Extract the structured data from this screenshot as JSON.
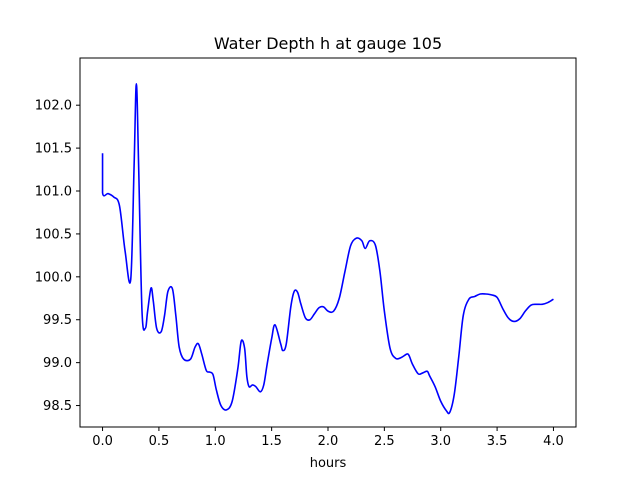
{
  "chart_data": {
    "type": "line",
    "title": "Water Depth h at gauge 105",
    "xlabel": "hours",
    "ylabel": "",
    "xlim": [
      -0.2,
      4.2
    ],
    "ylim": [
      98.25,
      102.55
    ],
    "xticks": [
      0.0,
      0.5,
      1.0,
      1.5,
      2.0,
      2.5,
      3.0,
      3.5,
      4.0
    ],
    "xtick_labels": [
      "0.0",
      "0.5",
      "1.0",
      "1.5",
      "2.0",
      "2.5",
      "3.0",
      "3.5",
      "4.0"
    ],
    "yticks": [
      98.5,
      99.0,
      99.5,
      100.0,
      100.5,
      101.0,
      101.5,
      102.0
    ],
    "ytick_labels": [
      "98.5",
      "99.0",
      "99.5",
      "100.0",
      "100.5",
      "101.0",
      "101.5",
      "102.0"
    ],
    "grid": false,
    "line_color": "#0000ff",
    "series": [
      {
        "name": "",
        "x": [
          0.0,
          0.0,
          0.05,
          0.1,
          0.15,
          0.2,
          0.25,
          0.28,
          0.3,
          0.32,
          0.35,
          0.38,
          0.4,
          0.43,
          0.45,
          0.48,
          0.52,
          0.55,
          0.58,
          0.62,
          0.65,
          0.68,
          0.72,
          0.78,
          0.82,
          0.85,
          0.88,
          0.92,
          0.95,
          0.98,
          1.01,
          1.05,
          1.1,
          1.15,
          1.2,
          1.23,
          1.26,
          1.28,
          1.3,
          1.33,
          1.36,
          1.4,
          1.43,
          1.46,
          1.5,
          1.53,
          1.58,
          1.6,
          1.63,
          1.67,
          1.7,
          1.73,
          1.76,
          1.8,
          1.84,
          1.88,
          1.92,
          1.96,
          2.0,
          2.05,
          2.1,
          2.15,
          2.2,
          2.25,
          2.3,
          2.33,
          2.37,
          2.42,
          2.46,
          2.5,
          2.55,
          2.6,
          2.65,
          2.7,
          2.72,
          2.75,
          2.8,
          2.84,
          2.88,
          2.9,
          2.95,
          3.0,
          3.05,
          3.08,
          3.12,
          3.16,
          3.2,
          3.25,
          3.3,
          3.35,
          3.4,
          3.45,
          3.5,
          3.55,
          3.6,
          3.65,
          3.7,
          3.75,
          3.8,
          3.85,
          3.9,
          3.95,
          4.0
        ],
        "y": [
          101.44,
          100.98,
          100.97,
          100.93,
          100.83,
          100.3,
          99.97,
          101.3,
          102.25,
          101.3,
          99.6,
          99.4,
          99.6,
          99.87,
          99.72,
          99.4,
          99.36,
          99.55,
          99.83,
          99.86,
          99.55,
          99.18,
          99.04,
          99.04,
          99.18,
          99.22,
          99.1,
          98.91,
          98.89,
          98.86,
          98.68,
          98.5,
          98.45,
          98.55,
          98.93,
          99.25,
          99.17,
          98.84,
          98.72,
          98.74,
          98.72,
          98.66,
          98.74,
          98.98,
          99.28,
          99.44,
          99.22,
          99.14,
          99.22,
          99.65,
          99.83,
          99.82,
          99.68,
          99.52,
          99.5,
          99.57,
          99.64,
          99.65,
          99.6,
          99.6,
          99.75,
          100.06,
          100.36,
          100.45,
          100.42,
          100.33,
          100.42,
          100.37,
          100.07,
          99.6,
          99.17,
          99.05,
          99.06,
          99.1,
          99.08,
          98.98,
          98.87,
          98.88,
          98.9,
          98.85,
          98.72,
          98.55,
          98.44,
          98.42,
          98.63,
          99.07,
          99.55,
          99.74,
          99.77,
          99.8,
          99.8,
          99.79,
          99.76,
          99.63,
          99.52,
          99.48,
          99.51,
          99.6,
          99.67,
          99.68,
          99.68,
          99.7,
          99.74
        ]
      }
    ]
  }
}
